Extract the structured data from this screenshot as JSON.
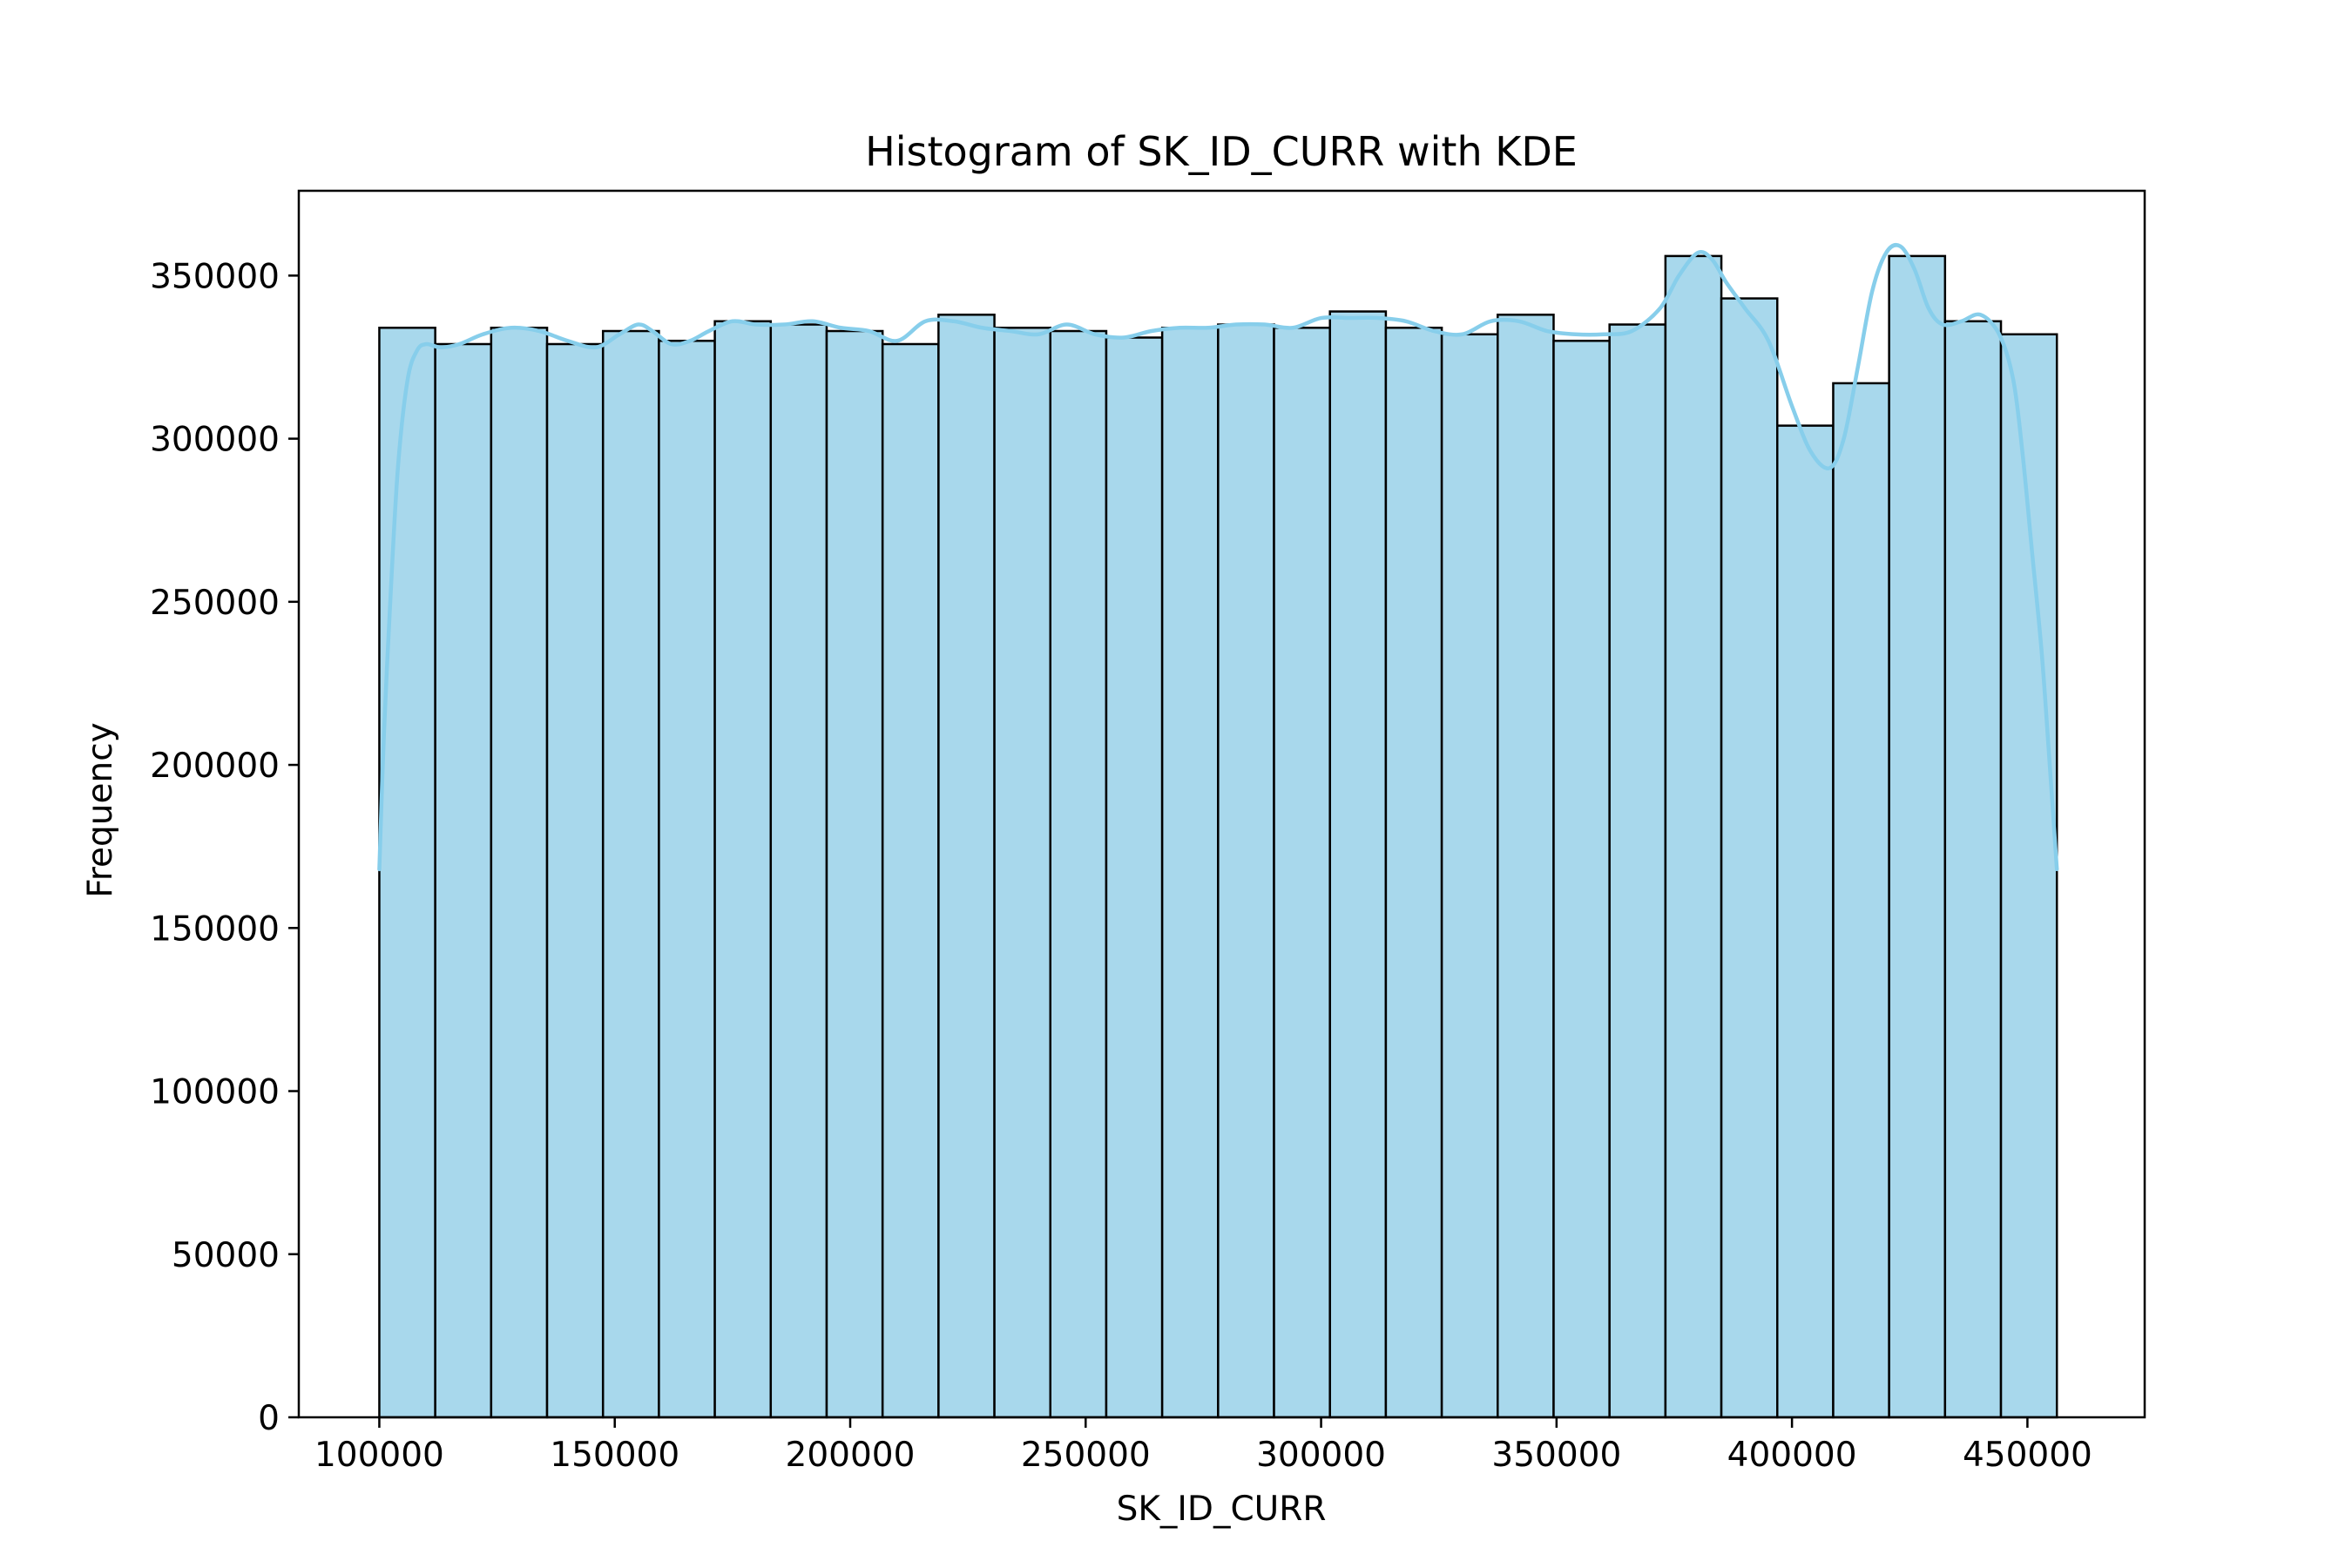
{
  "chart_data": {
    "type": "bar",
    "subtype": "histogram-with-kde",
    "title": "Histogram of SK_ID_CURR with KDE",
    "xlabel": "SK_ID_CURR",
    "ylabel": "Frequency",
    "xlim": [
      82900,
      474900
    ],
    "ylim": [
      0,
      376000
    ],
    "xticks": [
      100000,
      150000,
      200000,
      250000,
      300000,
      350000,
      400000,
      450000
    ],
    "yticks": [
      0,
      50000,
      100000,
      150000,
      200000,
      250000,
      300000,
      350000
    ],
    "grid": false,
    "bar_color": "#a8d8ec",
    "edge_color": "#000000",
    "kde_color": "#87ceeb",
    "bins": {
      "start": 100002,
      "end": 456255,
      "values": [
        334000,
        329000,
        334000,
        329000,
        333000,
        330000,
        336000,
        335000,
        333000,
        329000,
        338000,
        334000,
        333000,
        331000,
        334000,
        335000,
        334000,
        339000,
        334000,
        332000,
        338000,
        330000,
        335000,
        356000,
        343000,
        304000,
        317000,
        356000,
        336000,
        332000
      ]
    },
    "kde": {
      "x": [
        100002,
        101000,
        102500,
        104000,
        106000,
        108000,
        110000,
        113000,
        117000,
        122000,
        128000,
        134000,
        140000,
        146000,
        151000,
        155000,
        158000,
        162000,
        166000,
        170000,
        175000,
        180000,
        186000,
        192000,
        198000,
        204000,
        210000,
        216000,
        222000,
        228000,
        234000,
        240000,
        246000,
        252000,
        258000,
        264000,
        270000,
        276000,
        282000,
        288000,
        294000,
        300000,
        306000,
        312000,
        318000,
        324000,
        330000,
        336000,
        342000,
        348000,
        354000,
        360000,
        366000,
        372000,
        376000,
        380000,
        383000,
        386000,
        390000,
        395000,
        400000,
        404000,
        408000,
        411000,
        414000,
        417000,
        420000,
        423000,
        426000,
        429000,
        432000,
        436000,
        440000,
        444000,
        447000,
        449000,
        451000,
        453000,
        454500,
        456255
      ],
      "y": [
        168000,
        210000,
        255000,
        292000,
        318000,
        327000,
        329000,
        328000,
        329000,
        332000,
        334000,
        333000,
        330000,
        328000,
        332000,
        335000,
        333000,
        329000,
        330000,
        333000,
        336000,
        335000,
        335000,
        336000,
        334000,
        333000,
        330000,
        336000,
        336000,
        334000,
        333000,
        332000,
        335000,
        332000,
        331000,
        333000,
        334000,
        334000,
        335000,
        335000,
        334000,
        337000,
        337000,
        337000,
        336000,
        333000,
        332000,
        336000,
        336000,
        333000,
        332000,
        332000,
        333000,
        340000,
        350000,
        357000,
        355000,
        348000,
        340000,
        330000,
        310000,
        296000,
        291000,
        300000,
        322000,
        345000,
        357000,
        359000,
        352000,
        340000,
        335000,
        336000,
        338000,
        332000,
        318000,
        295000,
        265000,
        235000,
        205000,
        168000
      ]
    }
  }
}
